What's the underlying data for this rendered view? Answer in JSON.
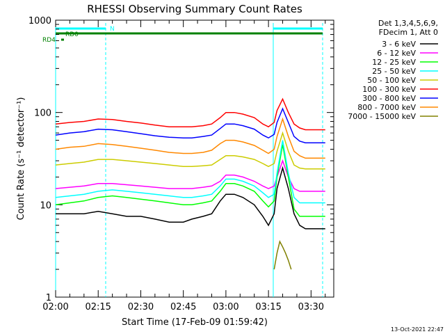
{
  "chart_data": {
    "type": "line",
    "title": "RHESSI Observing Summary Count Rates",
    "xlabel": "Start Time (17-Feb-09 01:59:42)",
    "ylabel": "Count Rate (s⁻¹ detector⁻¹)",
    "y_scale": "log",
    "ylim": [
      1,
      1000
    ],
    "x_minutes_range": [
      0,
      98
    ],
    "x_ticks": [
      "02:00",
      "02:15",
      "02:30",
      "02:45",
      "03:00",
      "03:15",
      "03:30"
    ],
    "y_ticks": [
      "1",
      "10",
      "100",
      "1000"
    ],
    "grid": false,
    "legend_position": "right",
    "legend_header": [
      "Det 1,3,4,5,6,9,",
      "FDecim 1, Att 0"
    ],
    "series": [
      {
        "name": "3 - 6 keV",
        "color": "#000000",
        "x": [
          0,
          5,
          10,
          15,
          20,
          25,
          30,
          35,
          40,
          45,
          48,
          52,
          55,
          58,
          60,
          63,
          66,
          70,
          73,
          75,
          77,
          78,
          80,
          82,
          84,
          86,
          88,
          90,
          95
        ],
        "y": [
          8,
          8,
          8,
          8.5,
          8,
          7.5,
          7.5,
          7,
          6.5,
          6.5,
          7,
          7.5,
          8,
          11,
          13,
          13,
          12,
          10,
          7.5,
          6,
          8,
          15,
          25,
          15,
          8,
          6,
          5.5,
          5.5,
          5.5
        ]
      },
      {
        "name": "6 - 12 keV",
        "color": "#ff00ff",
        "x": [
          0,
          5,
          10,
          15,
          20,
          25,
          30,
          35,
          40,
          45,
          48,
          52,
          55,
          58,
          60,
          63,
          66,
          70,
          73,
          75,
          77,
          78,
          80,
          82,
          84,
          86,
          88,
          90,
          95
        ],
        "y": [
          15,
          15.5,
          16,
          17,
          17,
          16.5,
          16,
          15.5,
          15,
          15,
          15,
          15.5,
          16,
          18,
          21,
          21,
          20,
          18,
          16,
          15,
          16,
          20,
          30,
          20,
          15,
          14,
          14,
          14,
          14
        ]
      },
      {
        "name": "12 - 25 keV",
        "color": "#00ff00",
        "x": [
          0,
          5,
          10,
          15,
          20,
          25,
          30,
          35,
          40,
          45,
          48,
          52,
          55,
          58,
          60,
          63,
          66,
          70,
          73,
          75,
          77,
          78,
          80,
          82,
          84,
          86,
          88,
          90,
          95
        ],
        "y": [
          10,
          10.5,
          11,
          12,
          12.5,
          12,
          11.5,
          11,
          10.5,
          10,
          10,
          10.5,
          11,
          14,
          17,
          17,
          16,
          14,
          11,
          9.5,
          11,
          20,
          45,
          20,
          9,
          7.5,
          7.5,
          7.5,
          7.5
        ]
      },
      {
        "name": "25 - 50 keV",
        "color": "#00ffff",
        "x": [
          0,
          5,
          10,
          15,
          20,
          25,
          30,
          35,
          40,
          45,
          48,
          52,
          55,
          58,
          60,
          63,
          66,
          70,
          73,
          75,
          77,
          78,
          80,
          82,
          84,
          86,
          88,
          90,
          95
        ],
        "y": [
          12,
          12.5,
          13,
          14,
          14.5,
          14,
          13.5,
          13,
          12.5,
          12,
          12,
          12.5,
          13,
          16,
          19,
          19,
          18,
          16,
          13.5,
          12,
          13,
          22,
          50,
          22,
          12,
          10.5,
          10.5,
          10.5,
          10.5
        ]
      },
      {
        "name": "50 - 100 keV",
        "color": "#cccc00",
        "x": [
          0,
          5,
          10,
          15,
          20,
          25,
          30,
          35,
          40,
          45,
          48,
          52,
          55,
          58,
          60,
          63,
          66,
          70,
          73,
          75,
          77,
          78,
          80,
          82,
          84,
          86,
          88,
          90,
          95
        ],
        "y": [
          27,
          28,
          29,
          31,
          31,
          30,
          29,
          28,
          27,
          26,
          26,
          26.5,
          27,
          31,
          34,
          34,
          33,
          31,
          28,
          26,
          28,
          38,
          60,
          38,
          27,
          25,
          24.5,
          24.5,
          24.5
        ]
      },
      {
        "name": "100 - 300 keV",
        "color": "#ff0000",
        "x": [
          0,
          5,
          10,
          15,
          20,
          25,
          30,
          35,
          40,
          45,
          48,
          52,
          55,
          58,
          60,
          63,
          66,
          70,
          73,
          75,
          77,
          78,
          80,
          82,
          84,
          86,
          88,
          90,
          95
        ],
        "y": [
          75,
          78,
          80,
          85,
          84,
          80,
          77,
          73,
          70,
          70,
          70,
          72,
          75,
          88,
          100,
          100,
          96,
          88,
          75,
          70,
          78,
          105,
          140,
          100,
          75,
          68,
          65,
          65,
          65
        ]
      },
      {
        "name": "300 - 800 keV",
        "color": "#0000ff",
        "x": [
          0,
          5,
          10,
          15,
          20,
          25,
          30,
          35,
          40,
          45,
          48,
          52,
          55,
          58,
          60,
          63,
          66,
          70,
          73,
          75,
          77,
          78,
          80,
          82,
          84,
          86,
          88,
          90,
          95
        ],
        "y": [
          57,
          60,
          62,
          66,
          65,
          62,
          59,
          56,
          54,
          53,
          53,
          55,
          57,
          67,
          75,
          75,
          72,
          66,
          57,
          53,
          58,
          78,
          110,
          78,
          55,
          49,
          47,
          47,
          47
        ]
      },
      {
        "name": "800 - 7000 keV",
        "color": "#ff8800",
        "x": [
          0,
          5,
          10,
          15,
          20,
          25,
          30,
          35,
          40,
          45,
          48,
          52,
          55,
          58,
          60,
          63,
          66,
          70,
          73,
          75,
          77,
          78,
          80,
          82,
          84,
          86,
          88,
          90,
          95
        ],
        "y": [
          40,
          42,
          43,
          46,
          45,
          43,
          41,
          39,
          37,
          36,
          36,
          37,
          39,
          46,
          50,
          50,
          48,
          44,
          39,
          36,
          40,
          55,
          85,
          55,
          38,
          34,
          32,
          32,
          32
        ]
      },
      {
        "name": "7000 - 15000 keV",
        "color": "#808000",
        "x": [
          77,
          78,
          79,
          80,
          81,
          82,
          83
        ],
        "y": [
          2,
          3,
          4,
          3.5,
          3,
          2.5,
          2
        ]
      }
    ]
  },
  "markers": {
    "N_label": "N",
    "RD0_label": "RD0",
    "RD4_label": "RD4"
  },
  "timestamp": "13-Oct-2021 22:47"
}
